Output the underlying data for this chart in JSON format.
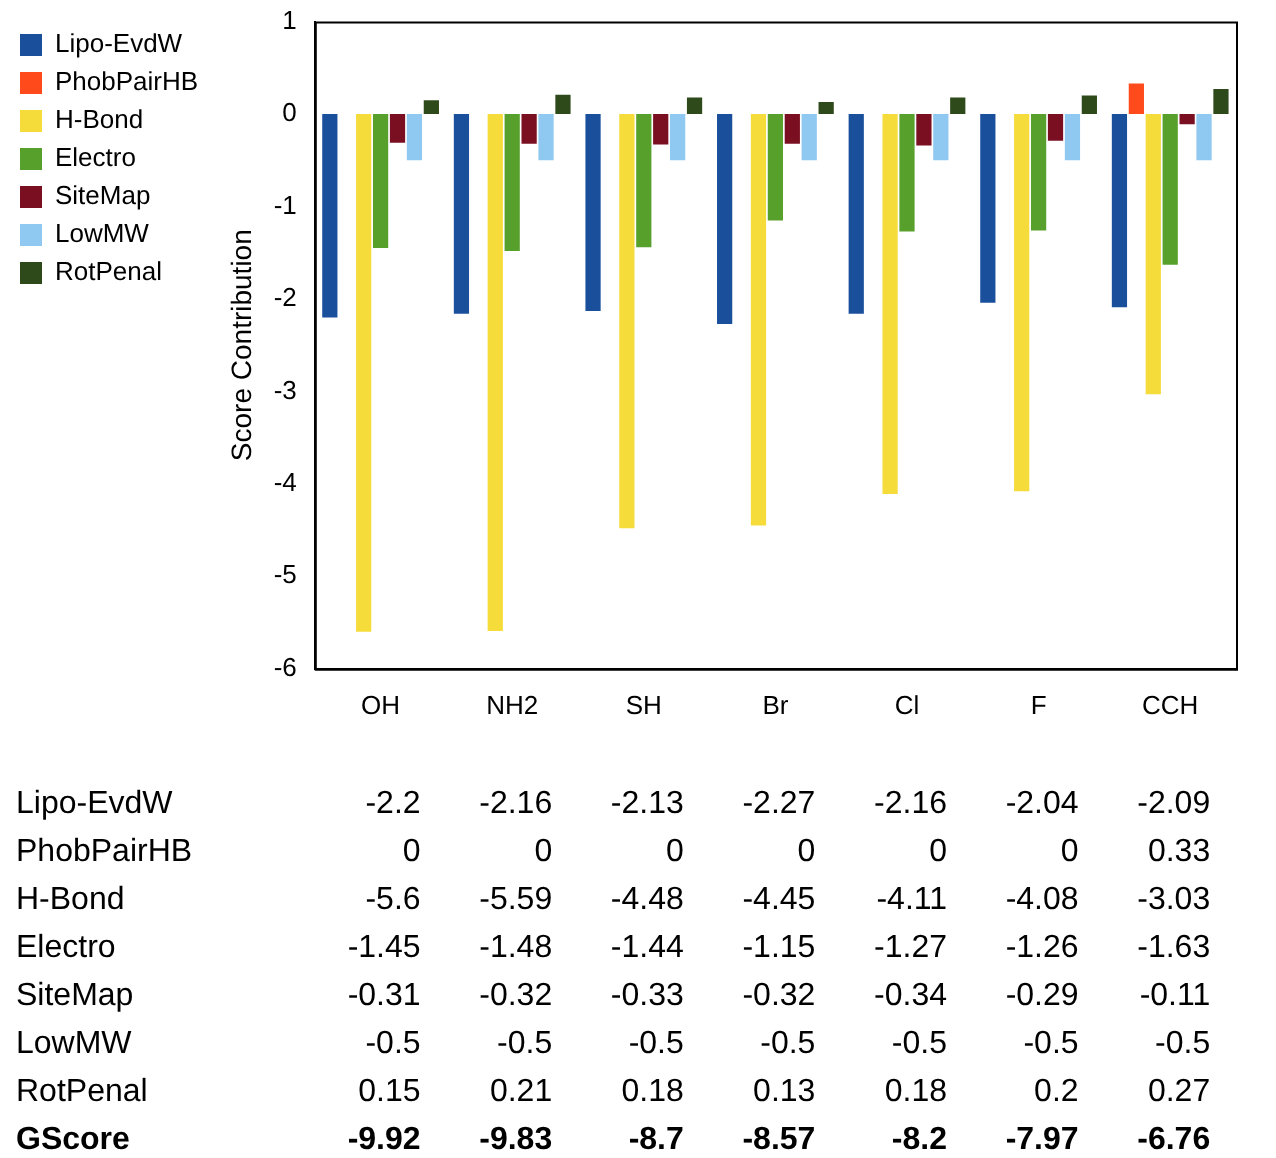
{
  "chart_data": {
    "type": "bar",
    "ylabel": "Score Contribution",
    "categories": [
      "OH",
      "NH2",
      "SH",
      "Br",
      "Cl",
      "F",
      "CCH"
    ],
    "series": [
      {
        "name": "Lipo-EvdW",
        "color": "#1a4f9c",
        "values": [
          -2.2,
          -2.16,
          -2.13,
          -2.27,
          -2.16,
          -2.04,
          -2.09
        ]
      },
      {
        "name": "PhobPairHB",
        "color": "#ff4a1c",
        "values": [
          0,
          0,
          0,
          0,
          0,
          0,
          0.33
        ]
      },
      {
        "name": "H-Bond",
        "color": "#f5dc3a",
        "values": [
          -5.6,
          -5.59,
          -4.48,
          -4.45,
          -4.11,
          -4.08,
          -3.03
        ]
      },
      {
        "name": "Electro",
        "color": "#58a02c",
        "values": [
          -1.45,
          -1.48,
          -1.44,
          -1.15,
          -1.27,
          -1.26,
          -1.63
        ]
      },
      {
        "name": "SiteMap",
        "color": "#7a0f22",
        "values": [
          -0.31,
          -0.32,
          -0.33,
          -0.32,
          -0.34,
          -0.29,
          -0.11
        ]
      },
      {
        "name": "LowMW",
        "color": "#8fc8f0",
        "values": [
          -0.5,
          -0.5,
          -0.5,
          -0.5,
          -0.5,
          -0.5,
          -0.5
        ]
      },
      {
        "name": "RotPenal",
        "color": "#2f4a1a",
        "values": [
          0.15,
          0.21,
          0.18,
          0.13,
          0.18,
          0.2,
          0.27
        ]
      }
    ],
    "annotations": [
      "GScore",
      "-9.92",
      "-9.83",
      "-8.7",
      "-8.57",
      "-8.2",
      "-7.97",
      "-6.76"
    ],
    "data_labels": true,
    "ylim": [
      -6,
      1
    ],
    "yticks": [
      -6,
      -5,
      -4,
      -3,
      -2,
      -1,
      0,
      1
    ],
    "grid": false,
    "legend": "top left"
  }
}
